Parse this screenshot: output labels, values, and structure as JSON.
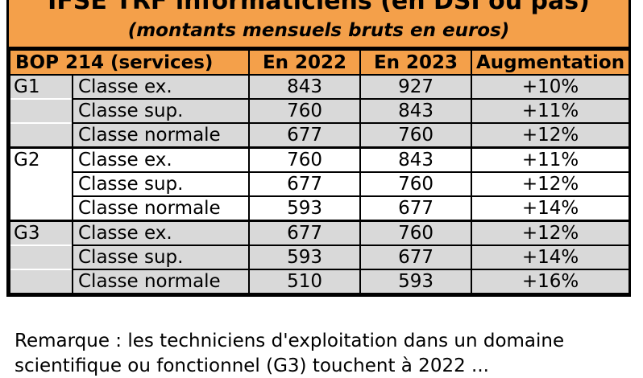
{
  "title": {
    "main": "IFSE TRF informaticiens (en DSI ou pas)",
    "subtitle": "(montants mensuels bruts en euros)"
  },
  "table": {
    "headers": [
      "BOP 214 (services)",
      "En 2022",
      "En 2023",
      "Augmentation"
    ],
    "groups": [
      {
        "name": "G1",
        "rows": [
          {
            "classe": "Classe ex.",
            "y2022": "843",
            "y2023": "927",
            "augmentation": "+10%"
          },
          {
            "classe": "Classe sup.",
            "y2022": "760",
            "y2023": "843",
            "augmentation": "+11%"
          },
          {
            "classe": "Classe normale",
            "y2022": "677",
            "y2023": "760",
            "augmentation": "+12%"
          }
        ]
      },
      {
        "name": "G2",
        "rows": [
          {
            "classe": "Classe ex.",
            "y2022": "760",
            "y2023": "843",
            "augmentation": "+11%"
          },
          {
            "classe": "Classe sup.",
            "y2022": "677",
            "y2023": "760",
            "augmentation": "+12%"
          },
          {
            "classe": "Classe normale",
            "y2022": "593",
            "y2023": "677",
            "augmentation": "+14%"
          }
        ]
      },
      {
        "name": "G3",
        "rows": [
          {
            "classe": "Classe ex.",
            "y2022": "677",
            "y2023": "760",
            "augmentation": "+12%"
          },
          {
            "classe": "Classe sup.",
            "y2022": "593",
            "y2023": "677",
            "augmentation": "+14%"
          },
          {
            "classe": "Classe normale",
            "y2022": "510",
            "y2023": "593",
            "augmentation": "+16%"
          }
        ]
      }
    ]
  },
  "note": {
    "line1": "Remarque : les techniciens d'exploitation dans un domaine",
    "line2": "scientifique ou fonctionnel (G3) touchent à 2022 ..."
  },
  "colors": {
    "header_bg": "#f4a04a",
    "shaded_row": "#d9d9d9",
    "plain_row": "#ffffff"
  }
}
